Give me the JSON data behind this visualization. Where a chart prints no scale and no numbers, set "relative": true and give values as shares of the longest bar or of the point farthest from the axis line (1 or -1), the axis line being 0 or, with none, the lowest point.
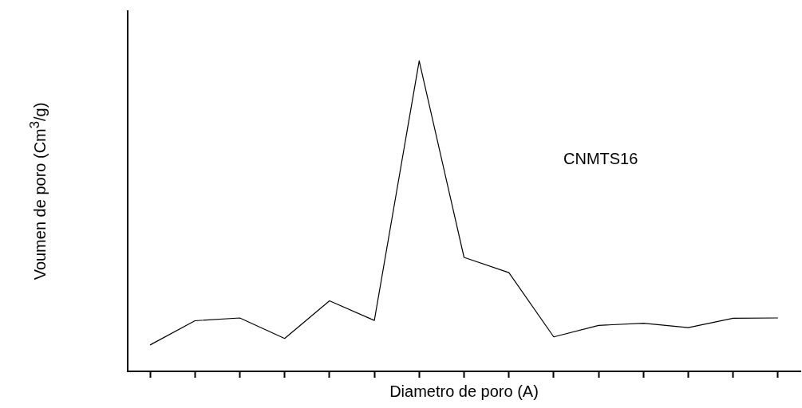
{
  "chart_data": {
    "type": "line",
    "relative": true,
    "xlabel": "Diametro de poro (A)",
    "ylabel": "Voumen de poro (Cm$^{3}$/g)",
    "annotations": [
      "CNMTS16"
    ],
    "tick_labels": false,
    "grid": false,
    "legend": false,
    "marker": "none",
    "line_style": "solid",
    "categories": [
      null,
      null,
      null,
      null,
      null,
      null,
      null,
      null,
      null,
      null,
      null,
      null,
      null,
      null,
      null
    ],
    "series": [
      {
        "color": "#000000",
        "values": [
          0.085,
          0.163,
          0.172,
          0.106,
          0.227,
          0.164,
          1,
          0.367,
          0.318,
          0.111,
          0.148,
          0.155,
          0.141,
          0.171,
          0.172
        ]
      }
    ]
  }
}
